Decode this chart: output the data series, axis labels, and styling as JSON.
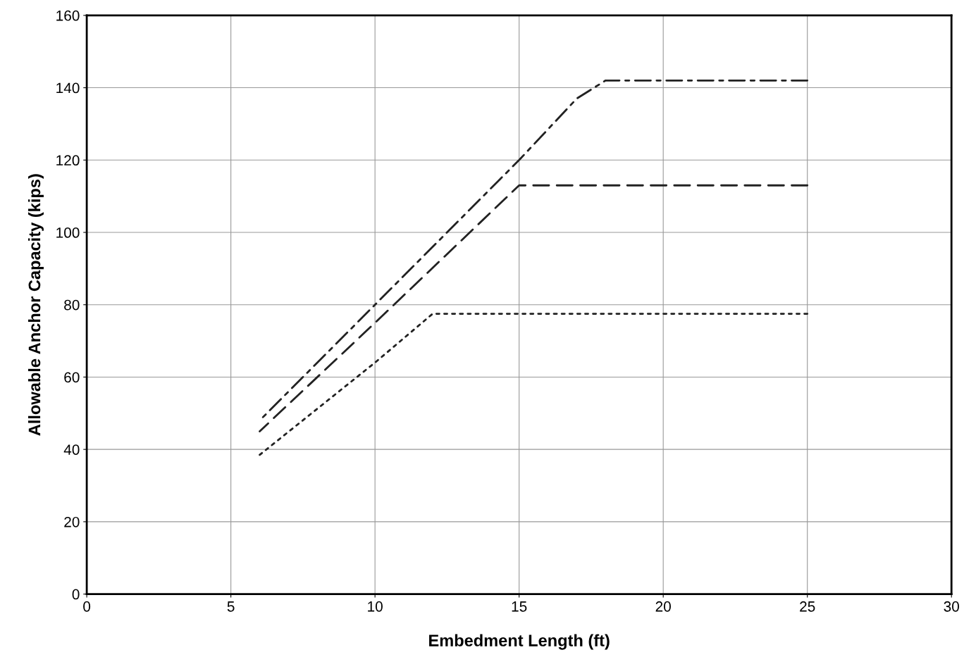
{
  "chart_data": {
    "type": "line",
    "xlabel": "Embedment Length (ft)",
    "ylabel": "Allowable Anchor Capacity (kips)",
    "xlim": [
      0,
      30
    ],
    "xticks": [
      0,
      5,
      10,
      15,
      20,
      25,
      30
    ],
    "ylim": [
      0,
      160
    ],
    "yticks": [
      0,
      20,
      40,
      60,
      80,
      100,
      120,
      140,
      160
    ],
    "grid": true,
    "series": [
      {
        "x": [
          6,
          10,
          15,
          17,
          18,
          25
        ],
        "values": [
          48,
          80,
          120,
          137,
          142,
          142
        ],
        "color": "#222222",
        "line_style": "dashdot"
      },
      {
        "x": [
          6,
          10,
          15,
          25
        ],
        "values": [
          45,
          75,
          113,
          113
        ],
        "color": "#222222",
        "line_style": "dashed"
      },
      {
        "x": [
          6,
          10,
          12,
          25
        ],
        "values": [
          38.5,
          64,
          77.5,
          77.5
        ],
        "color": "#222222",
        "line_style": "dotted"
      }
    ]
  }
}
